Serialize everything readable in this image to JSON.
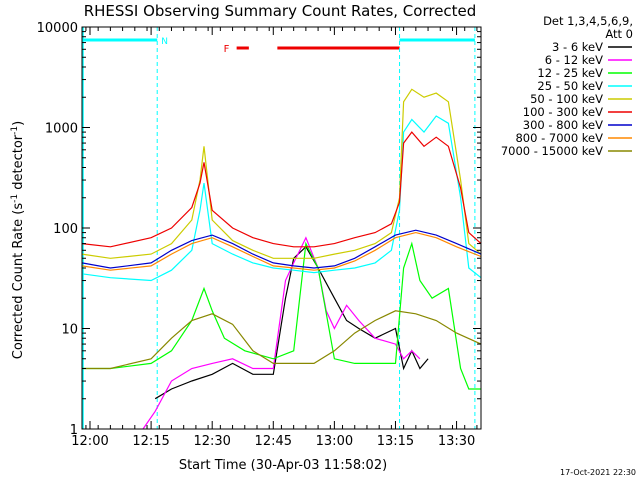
{
  "chart_data": {
    "type": "line",
    "title": "RHESSI Observing Summary Count Rates, Corrected",
    "xlabel": "Start Time (30-Apr-03 11:58:02)",
    "ylabel_main": "Corrected Count Rate (s",
    "ylabel_sup1": "-1",
    "ylabel_mid": " detector",
    "ylabel_sup2": "-1",
    "ylabel_end": ")",
    "y_scale": "log",
    "ylim": [
      1,
      10000
    ],
    "xlim": [
      "11:58:02",
      "13:36:00"
    ],
    "xticks": [
      "12:00",
      "12:15",
      "12:30",
      "12:45",
      "13:00",
      "13:15",
      "13:30"
    ],
    "yticks": [
      "1",
      "10",
      "100",
      "1000",
      "10000"
    ],
    "legend_header": [
      "Det 1,3,4,5,6,9,",
      "Att 0"
    ],
    "legend_placement": "right-outside",
    "night_marker_label": "N",
    "flare_marker_label": "F",
    "timestamp": "17-Oct-2021 22:30",
    "night_intervals": [
      [
        "11:58:02",
        "12:16:30"
      ],
      [
        "13:16:00",
        "13:34:30"
      ]
    ],
    "flare_intervals": [
      [
        "12:36:00",
        "12:39:00"
      ],
      [
        "12:46:00",
        "13:16:00"
      ]
    ],
    "saa_lines": [
      "12:16:30",
      "13:16:00",
      "13:34:30"
    ],
    "series": [
      {
        "name": "3 - 6 keV",
        "color": "#000000",
        "x": [
          "12:16",
          "12:20",
          "12:25",
          "12:30",
          "12:35",
          "12:40",
          "12:45",
          "12:48",
          "12:50",
          "12:53",
          "12:56",
          "13:00",
          "13:03",
          "13:06",
          "13:10",
          "13:15",
          "13:17",
          "13:19",
          "13:21",
          "13:23"
        ],
        "y": [
          2,
          2.5,
          3,
          3.5,
          4.5,
          3.5,
          3.5,
          20,
          50,
          65,
          40,
          20,
          12,
          10,
          8,
          10,
          4,
          6,
          4,
          5
        ]
      },
      {
        "name": "6 - 12 keV",
        "color": "#ff00ff",
        "x": [
          "12:13",
          "12:16",
          "12:20",
          "12:25",
          "12:30",
          "12:35",
          "12:40",
          "12:45",
          "12:48",
          "12:50",
          "12:53",
          "12:56",
          "12:58",
          "13:00",
          "13:03",
          "13:06",
          "13:10",
          "13:15",
          "13:17",
          "13:19",
          "13:21"
        ],
        "y": [
          1,
          1.5,
          3,
          4,
          4.5,
          5,
          4,
          4,
          30,
          45,
          80,
          40,
          15,
          10,
          17,
          12,
          8,
          7,
          5,
          6,
          5
        ]
      },
      {
        "name": "12 - 25 keV",
        "color": "#00ff00",
        "x": [
          "11:58",
          "12:05",
          "12:15",
          "12:20",
          "12:25",
          "12:28",
          "12:30",
          "12:33",
          "12:38",
          "12:45",
          "12:50",
          "12:53",
          "12:56",
          "13:00",
          "13:05",
          "13:10",
          "13:15",
          "13:17",
          "13:19",
          "13:21",
          "13:24",
          "13:28",
          "13:31",
          "13:33",
          "13:36"
        ],
        "y": [
          4,
          4,
          4.5,
          6,
          12,
          25,
          15,
          8,
          6,
          5,
          6,
          70,
          40,
          5,
          4.5,
          4.5,
          4.5,
          40,
          70,
          30,
          20,
          25,
          4,
          2.5,
          2.5
        ]
      },
      {
        "name": "25 - 50 keV",
        "color": "#00ffff",
        "x": [
          "11:58",
          "12:05",
          "12:15",
          "12:20",
          "12:25",
          "12:27",
          "12:28",
          "12:30",
          "12:35",
          "12:40",
          "12:45",
          "12:50",
          "12:55",
          "13:00",
          "13:05",
          "13:10",
          "13:14",
          "13:16",
          "13:17",
          "13:19",
          "13:22",
          "13:25",
          "13:28",
          "13:31",
          "13:33",
          "13:36"
        ],
        "y": [
          35,
          32,
          30,
          38,
          60,
          150,
          280,
          70,
          55,
          45,
          40,
          38,
          36,
          38,
          40,
          45,
          60,
          150,
          900,
          1200,
          900,
          1300,
          1100,
          200,
          40,
          32
        ]
      },
      {
        "name": "50 - 100 keV",
        "color": "#cccc00",
        "x": [
          "11:58",
          "12:05",
          "12:15",
          "12:20",
          "12:25",
          "12:27",
          "12:28",
          "12:30",
          "12:35",
          "12:40",
          "12:45",
          "12:50",
          "12:55",
          "13:00",
          "13:05",
          "13:10",
          "13:14",
          "13:16",
          "13:17",
          "13:19",
          "13:22",
          "13:25",
          "13:28",
          "13:31",
          "13:33",
          "13:36"
        ],
        "y": [
          55,
          50,
          55,
          70,
          120,
          300,
          650,
          120,
          75,
          60,
          50,
          50,
          50,
          55,
          60,
          70,
          90,
          200,
          1800,
          2400,
          2000,
          2200,
          1800,
          300,
          70,
          55
        ]
      },
      {
        "name": "100 - 300 keV",
        "color": "#ee0000",
        "x": [
          "11:58",
          "12:05",
          "12:15",
          "12:20",
          "12:25",
          "12:27",
          "12:28",
          "12:30",
          "12:35",
          "12:40",
          "12:45",
          "12:50",
          "12:55",
          "13:00",
          "13:05",
          "13:10",
          "13:14",
          "13:16",
          "13:17",
          "13:19",
          "13:22",
          "13:25",
          "13:28",
          "13:31",
          "13:33",
          "13:36"
        ],
        "y": [
          70,
          65,
          80,
          100,
          160,
          280,
          450,
          150,
          100,
          80,
          70,
          65,
          65,
          70,
          80,
          90,
          110,
          180,
          700,
          900,
          650,
          800,
          650,
          250,
          90,
          70
        ]
      },
      {
        "name": "300 - 800 keV",
        "color": "#0000cc",
        "x": [
          "11:58",
          "12:05",
          "12:15",
          "12:20",
          "12:25",
          "12:30",
          "12:35",
          "12:40",
          "12:45",
          "12:50",
          "12:55",
          "13:00",
          "13:05",
          "13:10",
          "13:15",
          "13:20",
          "13:25",
          "13:30",
          "13:36"
        ],
        "y": [
          45,
          40,
          45,
          60,
          75,
          85,
          70,
          55,
          45,
          42,
          40,
          42,
          50,
          65,
          85,
          95,
          85,
          70,
          55
        ]
      },
      {
        "name": "800 - 7000 keV",
        "color": "#ff8800",
        "x": [
          "11:58",
          "12:05",
          "12:15",
          "12:20",
          "12:25",
          "12:30",
          "12:35",
          "12:40",
          "12:45",
          "12:50",
          "12:55",
          "13:00",
          "13:05",
          "13:10",
          "13:15",
          "13:20",
          "13:25",
          "13:30",
          "13:36"
        ],
        "y": [
          42,
          38,
          42,
          55,
          70,
          80,
          65,
          52,
          42,
          40,
          38,
          40,
          47,
          60,
          80,
          90,
          80,
          65,
          52
        ]
      },
      {
        "name": "7000 - 15000 keV",
        "color": "#888800",
        "x": [
          "11:58",
          "12:05",
          "12:15",
          "12:20",
          "12:25",
          "12:30",
          "12:35",
          "12:40",
          "12:45",
          "12:50",
          "12:55",
          "13:00",
          "13:05",
          "13:10",
          "13:15",
          "13:20",
          "13:25",
          "13:30",
          "13:36"
        ],
        "y": [
          4,
          4,
          5,
          8,
          12,
          14,
          11,
          6,
          4.5,
          4.5,
          4.5,
          6,
          9,
          12,
          15,
          14,
          12,
          9,
          7
        ]
      }
    ]
  }
}
